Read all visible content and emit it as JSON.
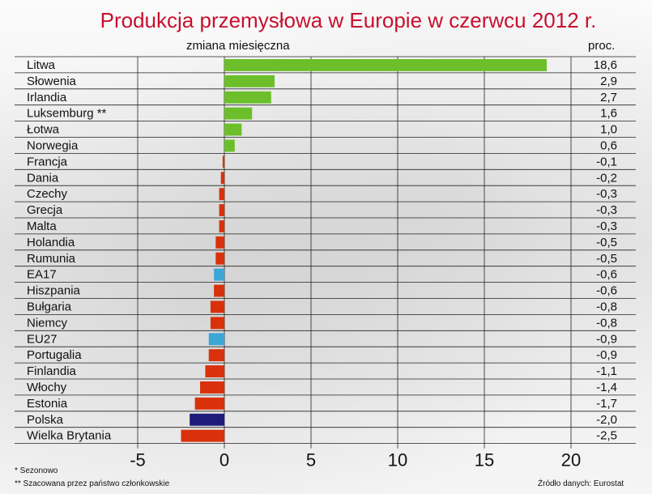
{
  "chart_data": {
    "type": "bar",
    "orientation": "horizontal",
    "title": "Produkcja przemysłowa w Europie w czerwcu 2012 r.",
    "subtitle": "zmiana miesięczna",
    "unit_label": "proc.",
    "categories": [
      "Litwa",
      "Słowenia",
      "Irlandia",
      "Luksemburg **",
      "Łotwa",
      "Norwegia",
      "Francja",
      "Dania",
      "Czechy",
      "Grecja",
      "Malta",
      "Holandia",
      "Rumunia",
      "EA17",
      "Hiszpania",
      "Bułgaria",
      "Niemcy",
      "EU27",
      "Portugalia",
      "Finlandia",
      "Włochy",
      "Estonia",
      "Polska",
      "Wielka Brytania"
    ],
    "values": [
      18.6,
      2.9,
      2.7,
      1.6,
      1.0,
      0.6,
      -0.1,
      -0.2,
      -0.3,
      -0.3,
      -0.3,
      -0.5,
      -0.5,
      -0.6,
      -0.6,
      -0.8,
      -0.8,
      -0.9,
      -0.9,
      -1.1,
      -1.4,
      -1.7,
      -2.0,
      -2.5
    ],
    "value_labels": [
      "18,6",
      "2,9",
      "2,7",
      "1,6",
      "1,0",
      "0,6",
      "-0,1",
      "-0,2",
      "-0,3",
      "-0,3",
      "-0,3",
      "-0,5",
      "-0,5",
      "-0,6",
      "-0,6",
      "-0,8",
      "-0,8",
      "-0,9",
      "-0,9",
      "-1,1",
      "-1,4",
      "-1,7",
      "-2,0",
      "-2,5"
    ],
    "xlim": [
      -5,
      20
    ],
    "xticks": [
      -5,
      0,
      5,
      10,
      15,
      20
    ],
    "xtick_labels": [
      "-5",
      "0",
      "5",
      "10",
      "15",
      "20"
    ],
    "grid": "vertical and horizontal",
    "colors": {
      "positive": "#6cbf2a",
      "negative": "#d9310b",
      "aggregate": "#3aa7d6",
      "highlight": "#1f1b7a"
    },
    "aggregate_categories": [
      "EA17",
      "EU27"
    ],
    "highlight_category": "Polska"
  },
  "footnotes": [
    "* Sezonowo",
    "** Szacowana przez państwo członkowskie"
  ],
  "source": "Źródło danych: Eurostat"
}
